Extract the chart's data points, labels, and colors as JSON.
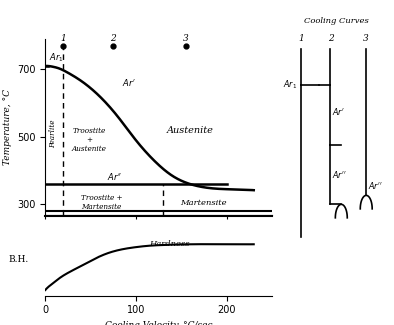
{
  "xlabel": "Cooling Velocity, °C/sec",
  "ylabel": "Temperature, °C",
  "xlim": [
    0,
    250
  ],
  "ylim_temp": [
    270,
    790
  ],
  "ar1_temp": 710,
  "ar_prime_x": [
    0,
    3,
    8,
    15,
    25,
    40,
    60,
    80,
    100,
    120,
    140,
    160,
    200,
    230
  ],
  "ar_prime_y": [
    710,
    710,
    708,
    703,
    690,
    665,
    620,
    560,
    490,
    430,
    385,
    360,
    345,
    342
  ],
  "ar_double_prime_y": 360,
  "ar_double_prime_end_x": 200,
  "hardness_x": [
    0,
    3,
    8,
    15,
    25,
    40,
    55,
    70,
    85,
    100,
    115,
    130,
    160,
    200,
    230
  ],
  "hardness_y": [
    0.08,
    0.12,
    0.17,
    0.24,
    0.32,
    0.42,
    0.52,
    0.6,
    0.65,
    0.68,
    0.7,
    0.71,
    0.72,
    0.72,
    0.72
  ],
  "dashed_x1": 20,
  "dashed_x2": 130,
  "curve1_dot_x": 20,
  "curve2_dot_x": 75,
  "curve3_dot_x": 155,
  "bottom_line_y": 280,
  "sep_line_y": 272
}
